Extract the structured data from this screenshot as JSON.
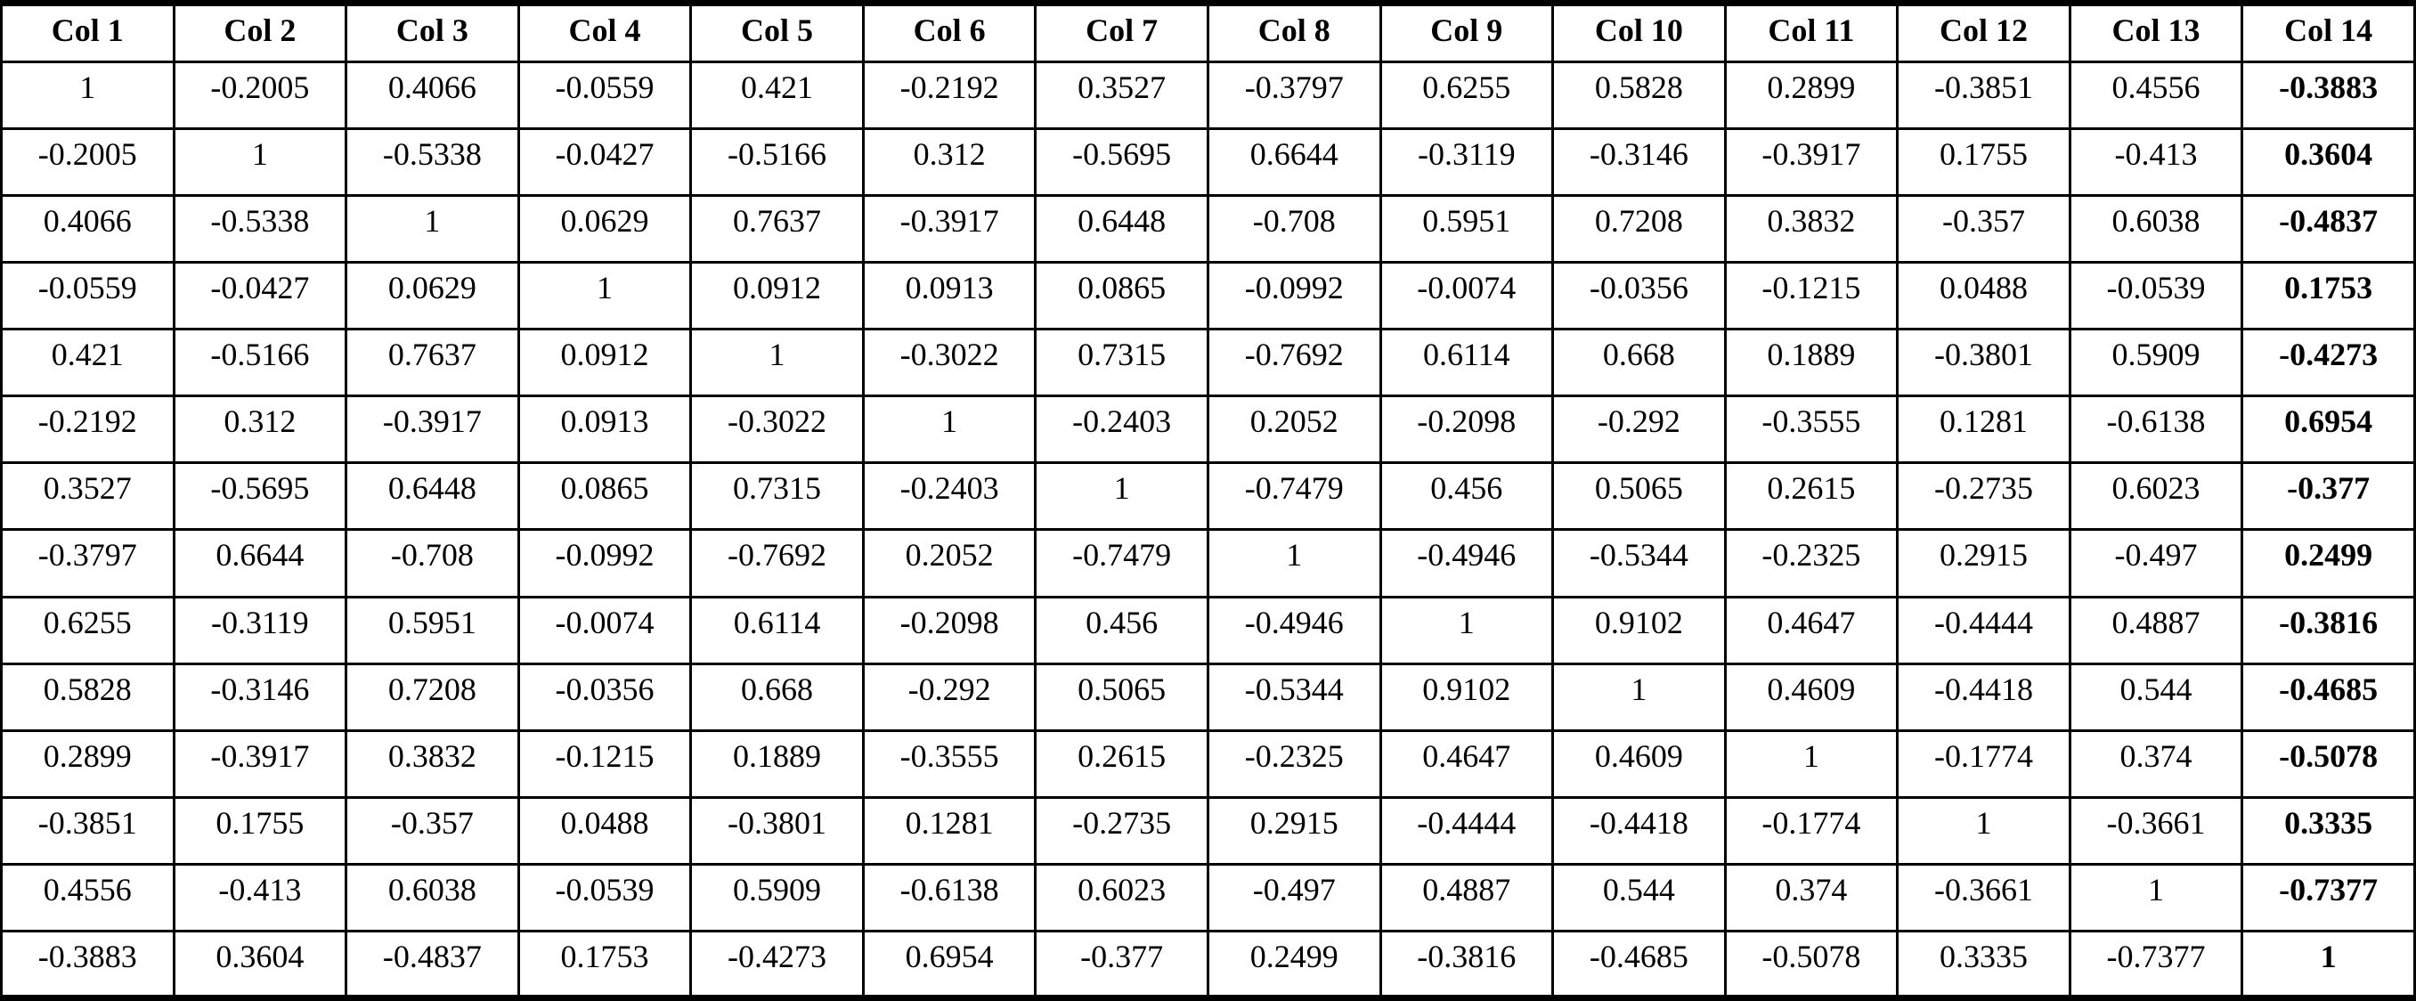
{
  "colors": {
    "border": "#000000",
    "background": "#ffffff",
    "text": "#000000"
  },
  "table": {
    "type": "correlation-matrix",
    "bold_last_column": true,
    "headers": [
      "Col 1",
      "Col 2",
      "Col 3",
      "Col 4",
      "Col 5",
      "Col 6",
      "Col 7",
      "Col 8",
      "Col 9",
      "Col 10",
      "Col 11",
      "Col 12",
      "Col 13",
      "Col 14"
    ],
    "rows": [
      [
        "1",
        "-0.2005",
        "0.4066",
        "-0.0559",
        "0.421",
        "-0.2192",
        "0.3527",
        "-0.3797",
        "0.6255",
        "0.5828",
        "0.2899",
        "-0.3851",
        "0.4556",
        "-0.3883"
      ],
      [
        "-0.2005",
        "1",
        "-0.5338",
        "-0.0427",
        "-0.5166",
        "0.312",
        "-0.5695",
        "0.6644",
        "-0.3119",
        "-0.3146",
        "-0.3917",
        "0.1755",
        "-0.413",
        "0.3604"
      ],
      [
        "0.4066",
        "-0.5338",
        "1",
        "0.0629",
        "0.7637",
        "-0.3917",
        "0.6448",
        "-0.708",
        "0.5951",
        "0.7208",
        "0.3832",
        "-0.357",
        "0.6038",
        "-0.4837"
      ],
      [
        "-0.0559",
        "-0.0427",
        "0.0629",
        "1",
        "0.0912",
        "0.0913",
        "0.0865",
        "-0.0992",
        "-0.0074",
        "-0.0356",
        "-0.1215",
        "0.0488",
        "-0.0539",
        "0.1753"
      ],
      [
        "0.421",
        "-0.5166",
        "0.7637",
        "0.0912",
        "1",
        "-0.3022",
        "0.7315",
        "-0.7692",
        "0.6114",
        "0.668",
        "0.1889",
        "-0.3801",
        "0.5909",
        "-0.4273"
      ],
      [
        "-0.2192",
        "0.312",
        "-0.3917",
        "0.0913",
        "-0.3022",
        "1",
        "-0.2403",
        "0.2052",
        "-0.2098",
        "-0.292",
        "-0.3555",
        "0.1281",
        "-0.6138",
        "0.6954"
      ],
      [
        "0.3527",
        "-0.5695",
        "0.6448",
        "0.0865",
        "0.7315",
        "-0.2403",
        "1",
        "-0.7479",
        "0.456",
        "0.5065",
        "0.2615",
        "-0.2735",
        "0.6023",
        "-0.377"
      ],
      [
        "-0.3797",
        "0.6644",
        "-0.708",
        "-0.0992",
        "-0.7692",
        "0.2052",
        "-0.7479",
        "1",
        "-0.4946",
        "-0.5344",
        "-0.2325",
        "0.2915",
        "-0.497",
        "0.2499"
      ],
      [
        "0.6255",
        "-0.3119",
        "0.5951",
        "-0.0074",
        "0.6114",
        "-0.2098",
        "0.456",
        "-0.4946",
        "1",
        "0.9102",
        "0.4647",
        "-0.4444",
        "0.4887",
        "-0.3816"
      ],
      [
        "0.5828",
        "-0.3146",
        "0.7208",
        "-0.0356",
        "0.668",
        "-0.292",
        "0.5065",
        "-0.5344",
        "0.9102",
        "1",
        "0.4609",
        "-0.4418",
        "0.544",
        "-0.4685"
      ],
      [
        "0.2899",
        "-0.3917",
        "0.3832",
        "-0.1215",
        "0.1889",
        "-0.3555",
        "0.2615",
        "-0.2325",
        "0.4647",
        "0.4609",
        "1",
        "-0.1774",
        "0.374",
        "-0.5078"
      ],
      [
        "-0.3851",
        "0.1755",
        "-0.357",
        "0.0488",
        "-0.3801",
        "0.1281",
        "-0.2735",
        "0.2915",
        "-0.4444",
        "-0.4418",
        "-0.1774",
        "1",
        "-0.3661",
        "0.3335"
      ],
      [
        "0.4556",
        "-0.413",
        "0.6038",
        "-0.0539",
        "0.5909",
        "-0.6138",
        "0.6023",
        "-0.497",
        "0.4887",
        "0.544",
        "0.374",
        "-0.3661",
        "1",
        "-0.7377"
      ],
      [
        "-0.3883",
        "0.3604",
        "-0.4837",
        "0.1753",
        "-0.4273",
        "0.6954",
        "-0.377",
        "0.2499",
        "-0.3816",
        "-0.4685",
        "-0.5078",
        "0.3335",
        "-0.7377",
        "1"
      ]
    ]
  }
}
